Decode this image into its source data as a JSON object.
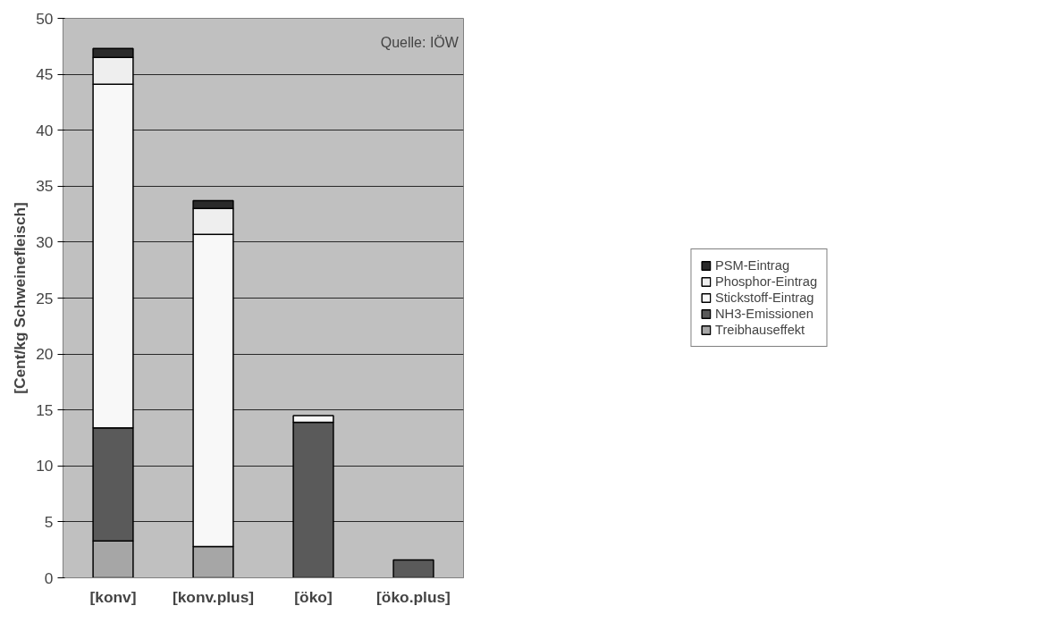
{
  "chart_data": {
    "type": "bar",
    "stacked": true,
    "ylabel": "[Cent/kg Schweinefleisch]",
    "categories": [
      "[konv]",
      "[konv.plus]",
      "[öko]",
      "[öko.plus]"
    ],
    "series": [
      {
        "name": "Treibhauseffekt",
        "color": "#a6a6a6",
        "values": [
          3.3,
          2.8,
          0,
          0
        ]
      },
      {
        "name": "NH3-Emissionen",
        "color": "#5a5a5a",
        "values": [
          10.1,
          0,
          13.9,
          1.6
        ]
      },
      {
        "name": "Stickstoff-Eintrag",
        "color": "#f8f8f8",
        "values": [
          30.7,
          27.9,
          0.6,
          0
        ]
      },
      {
        "name": "Phosphor-Eintrag",
        "color": "#eeeeee",
        "values": [
          2.4,
          2.3,
          0,
          0
        ]
      },
      {
        "name": "PSM-Eintrag",
        "color": "#2a2a2a",
        "values": [
          0.8,
          0.7,
          0,
          0
        ]
      }
    ],
    "ylim": [
      0,
      50
    ],
    "yticks": [
      0,
      5,
      10,
      15,
      20,
      25,
      30,
      35,
      40,
      45,
      50
    ],
    "grid": "y",
    "legend": "right",
    "annotations": [
      "Quelle: IÖW"
    ]
  }
}
